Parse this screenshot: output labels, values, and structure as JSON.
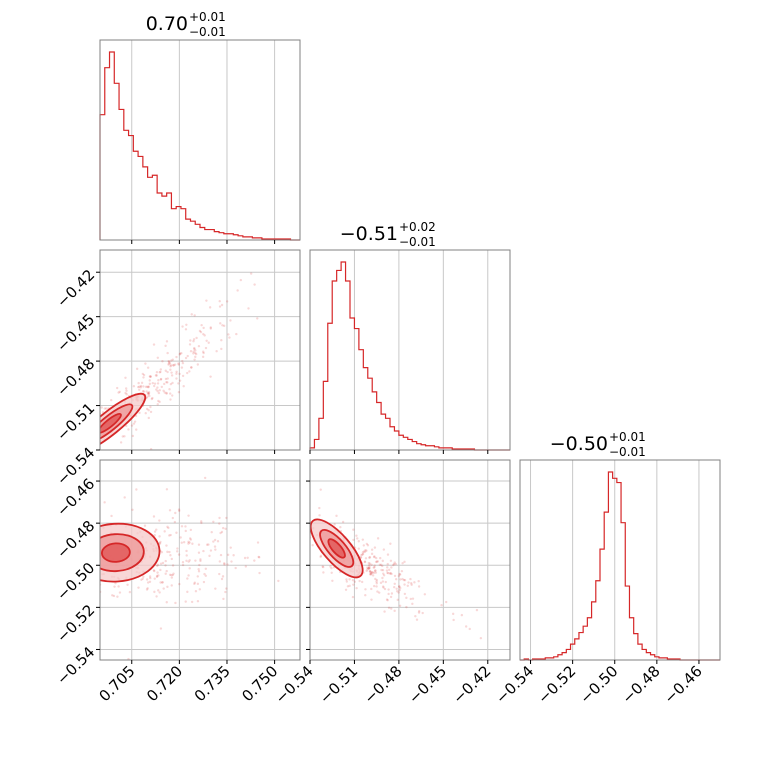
{
  "chart_data": {
    "type": "corner",
    "color": "#d62728",
    "fill_colors": [
      "#f6c9ca",
      "#ee9596",
      "#e05050"
    ],
    "parameters": [
      {
        "title_value": "0.70",
        "err_plus": "+0.01",
        "err_minus": "−0.01",
        "range": [
          0.695,
          0.758
        ],
        "ticks": [
          0.705,
          0.72,
          0.735,
          0.75
        ],
        "tick_labels": [
          "0.705",
          "0.720",
          "0.735",
          "0.750"
        ],
        "hist": {
          "bins": [
            0.695,
            0.6965,
            0.698,
            0.6995,
            0.701,
            0.7025,
            0.704,
            0.7055,
            0.707,
            0.7085,
            0.71,
            0.7115,
            0.713,
            0.7145,
            0.716,
            0.7175,
            0.719,
            0.7205,
            0.722,
            0.7235,
            0.725,
            0.7265,
            0.728,
            0.7295,
            0.731,
            0.7325,
            0.734,
            0.7355,
            0.737,
            0.7385,
            0.74,
            0.7415,
            0.743,
            0.7445,
            0.746,
            0.7475,
            0.749,
            0.7505,
            0.752,
            0.7535,
            0.755,
            0.7565,
            0.758
          ],
          "counts": [
            120,
            165,
            180,
            150,
            125,
            105,
            100,
            85,
            80,
            70,
            60,
            62,
            45,
            42,
            45,
            30,
            32,
            30,
            20,
            18,
            15,
            12,
            10,
            10,
            8,
            7,
            6,
            6,
            5,
            4,
            3,
            3,
            2,
            2,
            1,
            1,
            1,
            1,
            1,
            1,
            0,
            0
          ]
        }
      },
      {
        "title_value": "−0.51",
        "err_plus": "+0.02",
        "err_minus": "−0.01",
        "range": [
          -0.54,
          -0.405
        ],
        "ticks": [
          -0.54,
          -0.51,
          -0.48,
          -0.45,
          -0.42
        ],
        "tick_labels": [
          "−0.54",
          "−0.51",
          "−0.48",
          "−0.45",
          "−0.42"
        ],
        "hist": {
          "bins": [
            -0.54,
            -0.537,
            -0.534,
            -0.531,
            -0.528,
            -0.525,
            -0.522,
            -0.519,
            -0.516,
            -0.513,
            -0.51,
            -0.507,
            -0.504,
            -0.501,
            -0.498,
            -0.495,
            -0.492,
            -0.489,
            -0.486,
            -0.483,
            -0.48,
            -0.477,
            -0.474,
            -0.471,
            -0.468,
            -0.465,
            -0.462,
            -0.459,
            -0.456,
            -0.453,
            -0.45,
            -0.447,
            -0.444,
            -0.441,
            -0.438,
            -0.435,
            -0.432,
            -0.429,
            -0.426,
            -0.423,
            -0.42,
            -0.417,
            -0.414,
            -0.411,
            -0.408,
            -0.405
          ],
          "counts": [
            2,
            10,
            30,
            65,
            120,
            160,
            170,
            178,
            160,
            125,
            115,
            95,
            78,
            68,
            55,
            45,
            34,
            30,
            22,
            18,
            14,
            12,
            10,
            8,
            6,
            5,
            4,
            4,
            3,
            2,
            2,
            2,
            1,
            1,
            1,
            1,
            1,
            0,
            0,
            0,
            0,
            0,
            0,
            0,
            0
          ]
        }
      },
      {
        "title_value": "−0.50",
        "err_plus": "+0.01",
        "err_minus": "−0.01",
        "range": [
          -0.545,
          -0.45
        ],
        "ticks": [
          -0.54,
          -0.52,
          -0.5,
          -0.48,
          -0.46
        ],
        "tick_labels": [
          "−0.54",
          "−0.52",
          "−0.50",
          "−0.48",
          "−0.46"
        ],
        "hist": {
          "bins": [
            -0.545,
            -0.543,
            -0.541,
            -0.539,
            -0.537,
            -0.535,
            -0.533,
            -0.531,
            -0.529,
            -0.527,
            -0.525,
            -0.523,
            -0.521,
            -0.519,
            -0.517,
            -0.515,
            -0.513,
            -0.511,
            -0.509,
            -0.507,
            -0.505,
            -0.503,
            -0.501,
            -0.499,
            -0.497,
            -0.495,
            -0.493,
            -0.491,
            -0.489,
            -0.487,
            -0.485,
            -0.483,
            -0.481,
            -0.479,
            -0.477,
            -0.475,
            -0.473,
            -0.471,
            -0.469,
            -0.467,
            -0.465,
            -0.463,
            -0.461,
            -0.459,
            -0.457,
            -0.455,
            -0.453,
            -0.451
          ],
          "counts": [
            0,
            1,
            0,
            1,
            1,
            1,
            2,
            2,
            3,
            5,
            7,
            10,
            15,
            20,
            26,
            32,
            40,
            55,
            75,
            105,
            140,
            178,
            172,
            168,
            130,
            70,
            40,
            25,
            15,
            10,
            7,
            5,
            3,
            2,
            2,
            1,
            1,
            1,
            0,
            0,
            0,
            0,
            0,
            0,
            0,
            0,
            0
          ]
        }
      }
    ],
    "pairs": [
      {
        "x": 0,
        "y": 1,
        "center": [
          0.698,
          -0.522
        ],
        "sigma": [
          0.0045,
          0.008
        ],
        "rho": 0.88,
        "scatter_n": 320,
        "scatter_center": [
          0.71,
          -0.5
        ],
        "scatter_spread": [
          0.012,
          0.022
        ],
        "scatter_rho": 0.92,
        "tail_to": [
          0.742,
          -0.425
        ]
      },
      {
        "x": 0,
        "y": 2,
        "center": [
          0.7,
          -0.494
        ],
        "sigma": [
          0.0055,
          0.0055
        ],
        "rho": 0.05,
        "scatter_n": 300,
        "scatter_center": [
          0.712,
          -0.496
        ],
        "scatter_spread": [
          0.014,
          0.012
        ],
        "scatter_rho": 0.05,
        "tail_to": [
          0.745,
          -0.5
        ]
      },
      {
        "x": 1,
        "y": 2,
        "center": [
          -0.522,
          -0.492
        ],
        "sigma": [
          0.007,
          0.0055
        ],
        "rho": -0.75,
        "scatter_n": 300,
        "scatter_center": [
          -0.505,
          -0.5
        ],
        "scatter_spread": [
          0.018,
          0.01
        ],
        "scatter_rho": -0.7,
        "tail_to": [
          -0.42,
          -0.53
        ]
      }
    ]
  }
}
